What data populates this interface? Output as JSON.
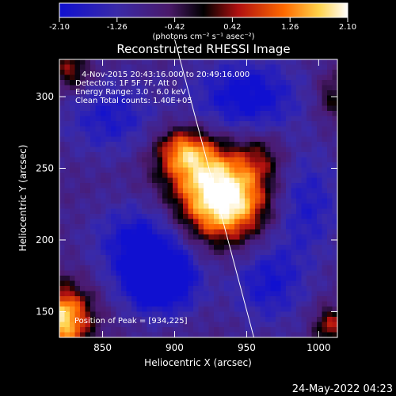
{
  "colorbar": {
    "tick_labels": [
      "-2.10",
      "-1.26",
      "-0.42",
      "0.42",
      "1.26",
      "2.10"
    ],
    "units_label": "(photons cm⁻² s⁻¹ asec⁻²)",
    "range": [
      -2.1,
      2.1
    ]
  },
  "chart_data": {
    "type": "heatmap",
    "title": "Reconstructed RHESSI Image",
    "xlabel": "Heliocentric X (arcsec)",
    "ylabel": "Heliocentric Y (arcsec)",
    "xlim": [
      820,
      1013
    ],
    "ylim": [
      132,
      326
    ],
    "x_ticks": [
      850,
      900,
      950,
      1000
    ],
    "y_ticks": [
      150,
      200,
      250,
      300
    ],
    "x_tick_labels": [
      "850",
      "900",
      "950",
      "1000"
    ],
    "y_tick_labels": [
      "150",
      "200",
      "250",
      "300"
    ],
    "colormap": "black-blue-purple-red-orange-yellow-white",
    "annotations": [
      "4-Nov-2015 20:43:16.000 to 20:49:16.000",
      "Detectors: 1F 5F 7F, Att 0",
      "Energy Range: 3.0 - 6.0 keV",
      "Clean    Total counts: 1.40E+05"
    ],
    "peak_label": "Position of Peak = [934,225]",
    "peak": [
      934,
      225
    ],
    "limb_line": [
      [
        900,
        340
      ],
      [
        955,
        132
      ]
    ]
  },
  "footer": {
    "date": "24-May-2022 04:23"
  }
}
